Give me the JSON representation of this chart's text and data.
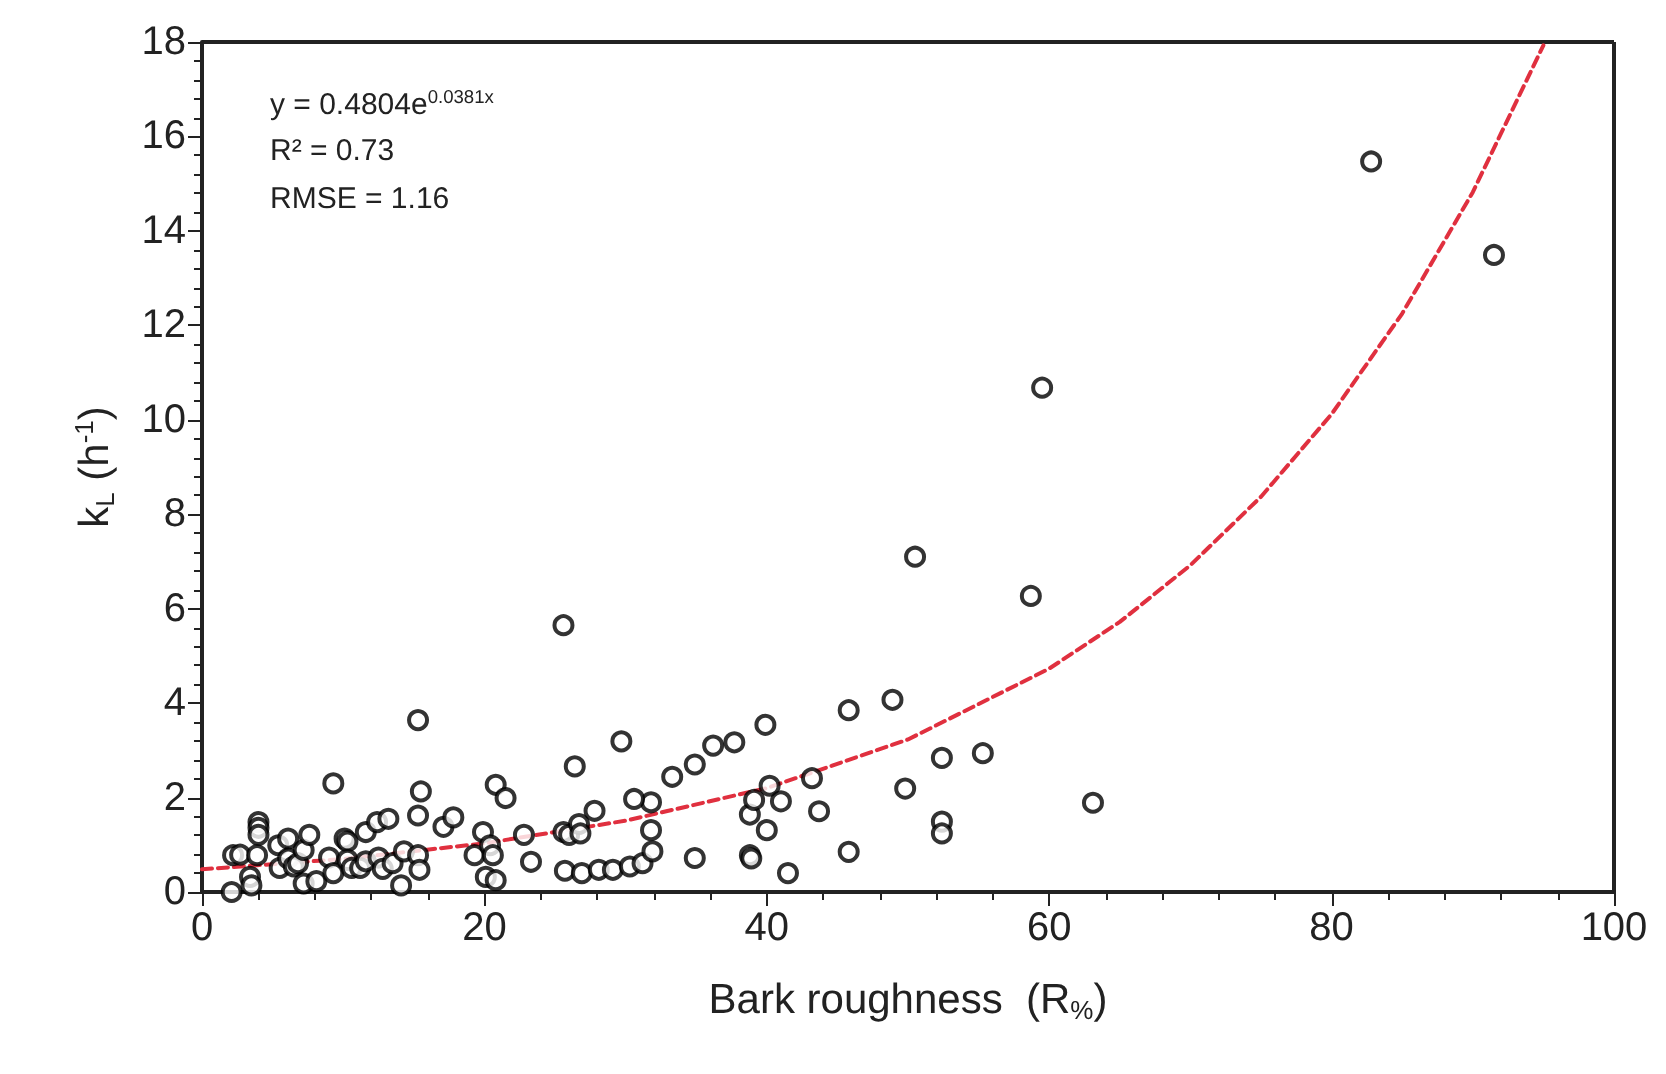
{
  "chart_data": {
    "type": "scatter",
    "xlabel": "Bark roughness  (R$_{%}$)",
    "ylabel": "k$_{L}$ (h$^{-1}$)",
    "annotations": [
      "y = 0.4804e$^{0.0381x}$",
      "R² = 0.73",
      "RMSE = 1.16"
    ],
    "xlim": [
      0,
      100
    ],
    "xticks": [
      0,
      20,
      40,
      60,
      80,
      100
    ],
    "ylim": [
      0,
      18
    ],
    "yticks": [
      0,
      2,
      4,
      6,
      8,
      10,
      12,
      14,
      16,
      18
    ],
    "grid": false,
    "marker": "circle",
    "series": [
      {
        "color": "#000000",
        "x": [
          2.1,
          2.2,
          2.7,
          3.4,
          3.5,
          3.9,
          4.0,
          4.0,
          4.0,
          5.4,
          5.5,
          6.1,
          6.1,
          6.5,
          6.8,
          7.2,
          7.6,
          7.2,
          8.1,
          9.0,
          9.3,
          9.3,
          10.1,
          10.3,
          10.3,
          10.6,
          11.2,
          11.6,
          11.6,
          12.4,
          12.5,
          13.2,
          12.8,
          13.5,
          14.1,
          14.3,
          15.3,
          15.5,
          15.3,
          15.3,
          15.4,
          17.1,
          17.8,
          19.9,
          19.3,
          20.4,
          20.6,
          20.1,
          20.8,
          20.8,
          21.5,
          22.8,
          23.3,
          25.6,
          26.4,
          25.6,
          26.0,
          26.7,
          26.8,
          27.8,
          25.7,
          26.9,
          28.1,
          29.1,
          30.3,
          31.2,
          31.9,
          31.8,
          31.8,
          30.6,
          29.7,
          33.3,
          34.9,
          34.9,
          36.2,
          37.7,
          39.9,
          38.8,
          39.1,
          40.2,
          41.0,
          40.0,
          38.8,
          38.9,
          41.5,
          43.2,
          43.7,
          45.8,
          45.8,
          48.9,
          49.8,
          50.5,
          52.4,
          52.4,
          52.4,
          55.3,
          58.7,
          59.5,
          63.1,
          82.8,
          91.5
        ],
        "values": [
          0,
          0.78,
          0.79,
          0.32,
          0.14,
          0.78,
          1.48,
          1.36,
          1.21,
          0.99,
          0.51,
          1.13,
          0.71,
          0.54,
          0.61,
          0.89,
          1.21,
          0.18,
          0.23,
          0.73,
          2.3,
          0.4,
          1.13,
          1.07,
          0.68,
          0.51,
          0.51,
          1.27,
          0.65,
          1.48,
          0.73,
          1.55,
          0.49,
          0.61,
          0.14,
          0.86,
          3.64,
          2.13,
          1.62,
          0.78,
          0.47,
          1.38,
          1.58,
          1.27,
          0.78,
          0.99,
          0.78,
          0.32,
          0.25,
          2.27,
          1.99,
          1.21,
          0.64,
          5.65,
          2.66,
          1.27,
          1.21,
          1.44,
          1.24,
          1.72,
          0.45,
          0.4,
          0.47,
          0.47,
          0.54,
          0.61,
          0.86,
          1.31,
          1.9,
          1.97,
          3.19,
          2.44,
          2.7,
          0.72,
          3.1,
          3.17,
          3.54,
          1.64,
          1.95,
          2.25,
          1.92,
          1.31,
          0.78,
          0.71,
          0.4,
          2.41,
          1.71,
          3.85,
          0.85,
          4.07,
          2.19,
          7.1,
          2.84,
          1.49,
          1.24,
          2.94,
          6.27,
          10.68,
          1.89,
          15.47,
          13.49
        ]
      },
      {
        "type": "line",
        "color": "#e0303f",
        "line_style": "dashed",
        "marker": "none",
        "x": [
          0,
          10,
          20,
          30,
          40,
          50,
          60,
          65,
          70,
          75,
          80,
          85,
          90,
          95
        ],
        "values": [
          0.48,
          0.7,
          1.03,
          1.51,
          2.2,
          3.23,
          4.73,
          5.72,
          6.92,
          8.37,
          10.12,
          12.25,
          14.82,
          17.93
        ]
      }
    ]
  }
}
